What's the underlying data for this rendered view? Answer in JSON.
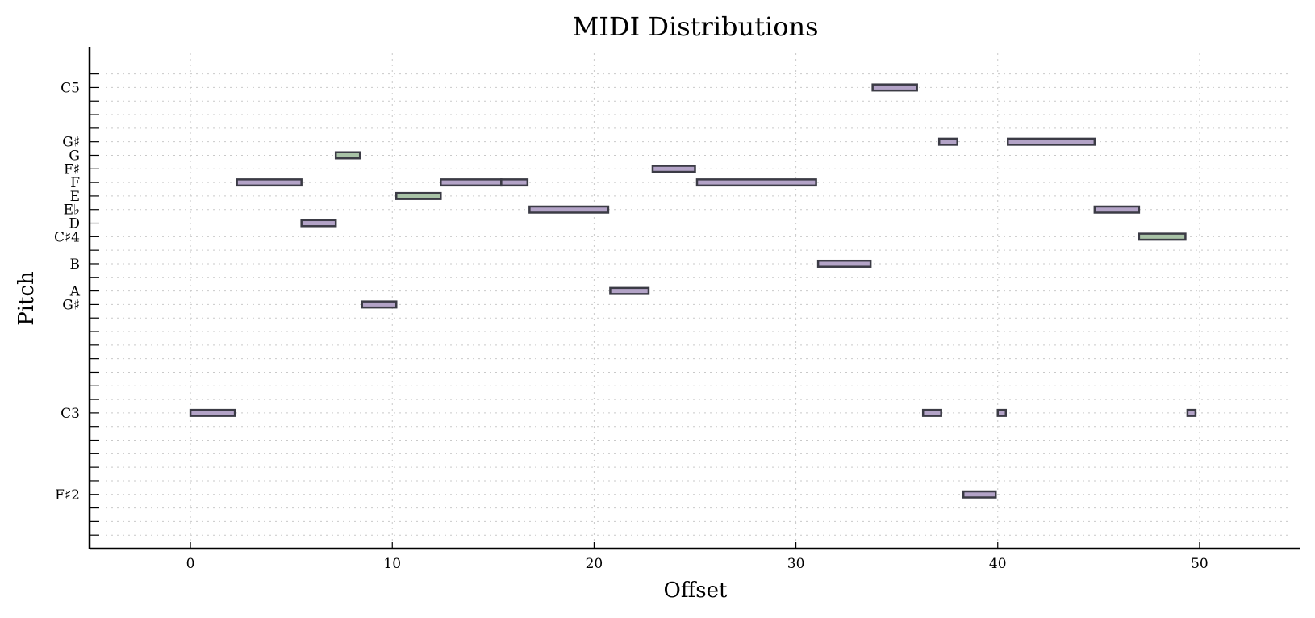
{
  "chart_data": {
    "type": "bar",
    "orientation": "horizontal-piano-roll",
    "title": "MIDI Distributions",
    "xlabel": "Offset",
    "ylabel": "Pitch",
    "xlim": [
      -5,
      55
    ],
    "ylim": [
      38,
      75
    ],
    "x_ticks": [
      0,
      10,
      20,
      30,
      40,
      50
    ],
    "y_tick_labels": [
      {
        "midi": 72,
        "label": "C5"
      },
      {
        "midi": 68,
        "label": "G♯"
      },
      {
        "midi": 67,
        "label": "G"
      },
      {
        "midi": 66,
        "label": "F♯"
      },
      {
        "midi": 65,
        "label": "F"
      },
      {
        "midi": 64,
        "label": "E"
      },
      {
        "midi": 63,
        "label": "E♭"
      },
      {
        "midi": 62,
        "label": "D"
      },
      {
        "midi": 61,
        "label": "C♯4"
      },
      {
        "midi": 59,
        "label": "B"
      },
      {
        "midi": 57,
        "label": "A"
      },
      {
        "midi": 56,
        "label": "G♯"
      },
      {
        "midi": 48,
        "label": "C3"
      },
      {
        "midi": 42,
        "label": "F♯2"
      }
    ],
    "grid": true,
    "colors": {
      "primary_note": "#b3a3c7",
      "secondary_note": "#a8c2a6",
      "edge": "#3b3b45"
    },
    "notes": [
      {
        "pitch": 48,
        "start": 0.0,
        "end": 2.2,
        "kind": "primary"
      },
      {
        "pitch": 65,
        "start": 2.3,
        "end": 5.5,
        "kind": "primary"
      },
      {
        "pitch": 62,
        "start": 5.5,
        "end": 7.2,
        "kind": "primary"
      },
      {
        "pitch": 67,
        "start": 7.2,
        "end": 8.4,
        "kind": "secondary"
      },
      {
        "pitch": 56,
        "start": 8.5,
        "end": 10.2,
        "kind": "primary"
      },
      {
        "pitch": 64,
        "start": 10.2,
        "end": 12.4,
        "kind": "secondary"
      },
      {
        "pitch": 65,
        "start": 12.4,
        "end": 15.4,
        "kind": "primary"
      },
      {
        "pitch": 65,
        "start": 15.4,
        "end": 16.7,
        "kind": "primary"
      },
      {
        "pitch": 63,
        "start": 16.8,
        "end": 20.7,
        "kind": "primary"
      },
      {
        "pitch": 57,
        "start": 20.8,
        "end": 22.7,
        "kind": "primary"
      },
      {
        "pitch": 66,
        "start": 22.9,
        "end": 25.0,
        "kind": "primary"
      },
      {
        "pitch": 65,
        "start": 25.1,
        "end": 31.0,
        "kind": "primary"
      },
      {
        "pitch": 59,
        "start": 31.1,
        "end": 33.7,
        "kind": "primary"
      },
      {
        "pitch": 72,
        "start": 33.8,
        "end": 36.0,
        "kind": "primary"
      },
      {
        "pitch": 48,
        "start": 36.3,
        "end": 37.2,
        "kind": "primary"
      },
      {
        "pitch": 68,
        "start": 37.1,
        "end": 38.0,
        "kind": "primary"
      },
      {
        "pitch": 42,
        "start": 38.3,
        "end": 39.9,
        "kind": "primary"
      },
      {
        "pitch": 48,
        "start": 40.0,
        "end": 40.4,
        "kind": "primary"
      },
      {
        "pitch": 68,
        "start": 40.5,
        "end": 44.8,
        "kind": "primary"
      },
      {
        "pitch": 63,
        "start": 44.8,
        "end": 47.0,
        "kind": "primary"
      },
      {
        "pitch": 61,
        "start": 47.0,
        "end": 49.3,
        "kind": "secondary"
      },
      {
        "pitch": 48,
        "start": 49.4,
        "end": 49.8,
        "kind": "primary"
      }
    ]
  }
}
